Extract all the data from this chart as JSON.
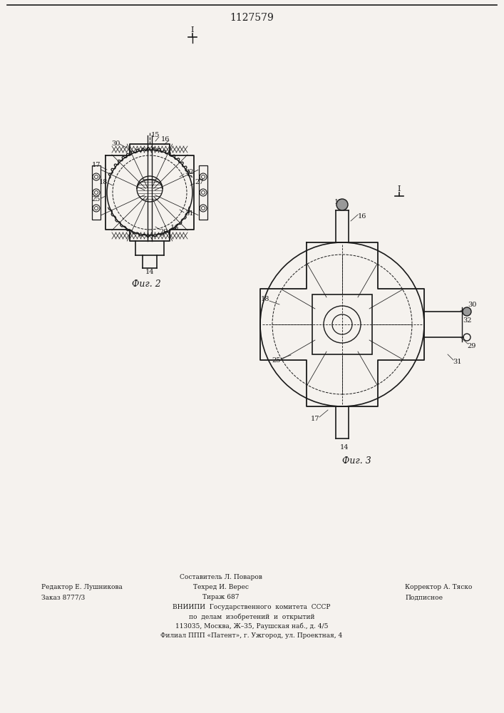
{
  "patent_number": "1127579",
  "background_color": "#f5f2ee",
  "line_color": "#1a1a1a",
  "fig2_caption": "Фиг. 2",
  "fig3_caption": "Фиг. 3",
  "footer_line1_left": "Редактор Е. Лушникова",
  "footer_line2_left": "Заказ 8777/3",
  "footer_line1_center": "Составитель Л. Поваров",
  "footer_line2_center": "Техред И. Верес",
  "footer_line3_center": "Тираж 687",
  "footer_line1_right": "Корректор А. Тяско",
  "footer_line2_right": "Подписное",
  "footer_vniiipi": "ВНИИПИ  Государственного  комитета  СССР",
  "footer_po": "по  делам  изобретений  и  открытий",
  "footer_addr1": "113035, Москва, Ж–35, Раушская наб., д. 4/5",
  "footer_addr2": "Филиал ППП «Патент», г. Ужгород, ул. Проектная, 4"
}
